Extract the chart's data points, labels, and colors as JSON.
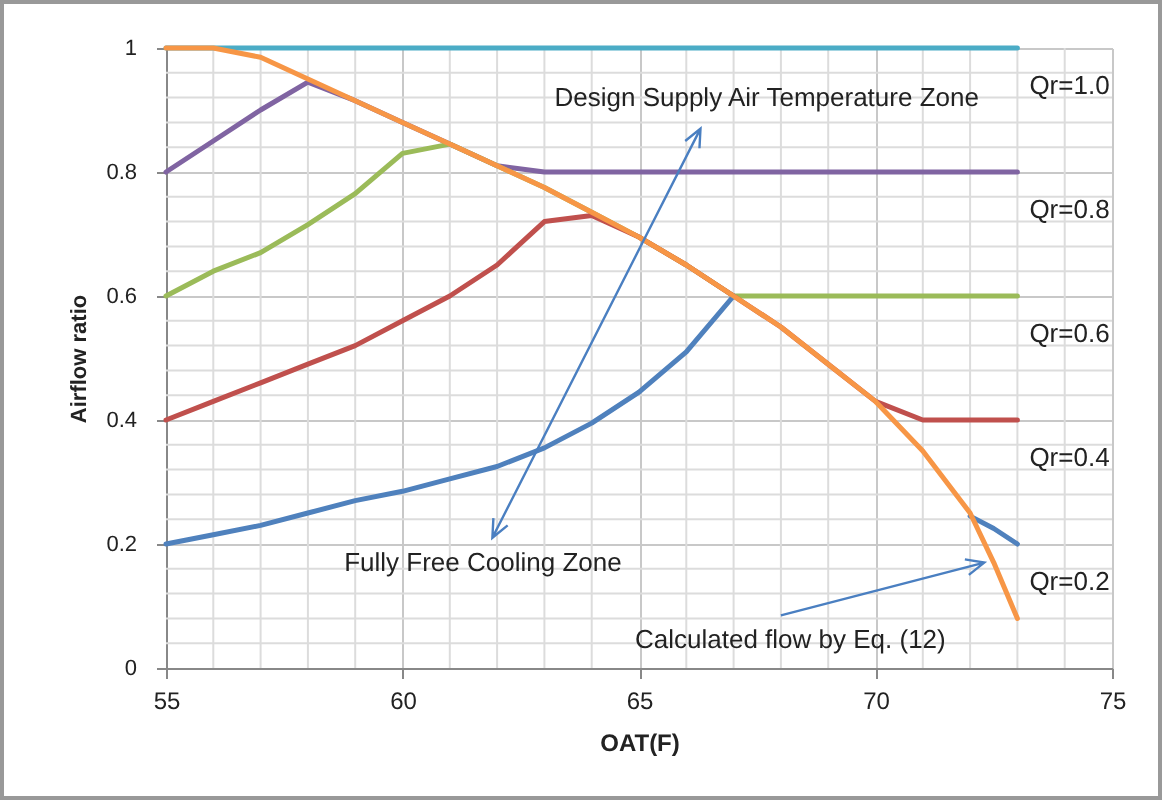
{
  "chart_data": {
    "type": "line",
    "xlabel": "OAT(F)",
    "ylabel": "Airflow ratio",
    "x": [
      55,
      56,
      57,
      58,
      59,
      60,
      61,
      62,
      63,
      64,
      65,
      66,
      67,
      68,
      69,
      70,
      71,
      72,
      72.5,
      73
    ],
    "series": [
      {
        "name": "Qr=1.0",
        "color": "#4bacc6",
        "values": [
          1,
          1,
          1,
          1,
          1,
          1,
          1,
          1,
          1,
          1,
          1,
          1,
          1,
          1,
          1,
          1,
          1,
          1,
          1,
          1
        ]
      },
      {
        "name": "Qr=0.8",
        "color": "#8064a2",
        "values": [
          0.8,
          0.85,
          0.9,
          0.945,
          0.915,
          0.88,
          0.845,
          0.81,
          0.8,
          0.8,
          0.8,
          0.8,
          0.8,
          0.8,
          0.8,
          0.8,
          0.8,
          0.8,
          0.8,
          0.8
        ]
      },
      {
        "name": "Qr=0.6",
        "color": "#9bbb59",
        "values": [
          0.6,
          0.64,
          0.67,
          0.715,
          0.765,
          0.83,
          0.845,
          0.81,
          0.775,
          0.735,
          0.695,
          0.65,
          0.6,
          0.6,
          0.6,
          0.6,
          0.6,
          0.6,
          0.6,
          0.6
        ]
      },
      {
        "name": "Qr=0.4",
        "color": "#c0504d",
        "values": [
          0.4,
          0.43,
          0.46,
          0.49,
          0.52,
          0.56,
          0.6,
          0.65,
          0.72,
          0.73,
          0.695,
          0.65,
          0.6,
          0.55,
          0.49,
          0.43,
          0.4,
          0.4,
          0.4,
          0.4
        ]
      },
      {
        "name": "Qr=0.2",
        "color": "#4f81bd",
        "values": [
          0.2,
          0.215,
          0.23,
          0.25,
          0.27,
          0.285,
          0.305,
          0.325,
          0.355,
          0.395,
          0.445,
          0.51,
          0.6,
          null,
          null,
          null,
          null,
          0.245,
          0.225,
          0.2
        ]
      },
      {
        "color": "#f79646",
        "values": [
          1,
          1,
          0.985,
          0.95,
          0.915,
          0.88,
          0.845,
          0.81,
          0.775,
          0.735,
          0.695,
          0.65,
          0.6,
          0.55,
          0.49,
          0.43,
          0.35,
          0.25,
          0.17,
          0.08
        ]
      }
    ],
    "xlim": [
      55,
      75
    ],
    "xticks": [
      55,
      {
        "value": 56,
        "label": null
      },
      {
        "value": 57,
        "label": null
      },
      {
        "value": 58,
        "label": null
      },
      {
        "value": 59,
        "label": null
      },
      60,
      {
        "value": 61,
        "label": null
      },
      {
        "value": 62,
        "label": null
      },
      {
        "value": 63,
        "label": null
      },
      {
        "value": 64,
        "label": null
      },
      65,
      {
        "value": 66,
        "label": null
      },
      {
        "value": 67,
        "label": null
      },
      {
        "value": 68,
        "label": null
      },
      {
        "value": 69,
        "label": null
      },
      70,
      {
        "value": 71,
        "label": null
      },
      {
        "value": 72,
        "label": null
      },
      {
        "value": 73,
        "label": null
      },
      {
        "value": 74,
        "label": null
      },
      75
    ],
    "ylim": [
      0,
      1
    ],
    "yticks": [
      0,
      {
        "value": 0.04,
        "label": null
      },
      {
        "value": 0.08,
        "label": null
      },
      {
        "value": 0.12,
        "label": null
      },
      {
        "value": 0.16,
        "label": null
      },
      0.2,
      {
        "value": 0.24,
        "label": null
      },
      {
        "value": 0.28,
        "label": null
      },
      {
        "value": 0.32,
        "label": null
      },
      {
        "value": 0.36,
        "label": null
      },
      0.4,
      {
        "value": 0.44,
        "label": null
      },
      {
        "value": 0.48,
        "label": null
      },
      {
        "value": 0.52,
        "label": null
      },
      {
        "value": 0.56,
        "label": null
      },
      0.6,
      {
        "value": 0.64,
        "label": null
      },
      {
        "value": 0.68,
        "label": null
      },
      {
        "value": 0.72,
        "label": null
      },
      {
        "value": 0.76,
        "label": null
      },
      0.8,
      {
        "value": 0.84,
        "label": null
      },
      {
        "value": 0.88,
        "label": null
      },
      {
        "value": 0.92,
        "label": null
      },
      {
        "value": 0.96,
        "label": null
      },
      1
    ],
    "grid": true,
    "legend": "right",
    "marker": "none",
    "line_style": "solid",
    "annotations": [
      "Design Supply Air Temperature Zone",
      "Fully Free Cooling Zone",
      "Calculated flow by Eq. (12)"
    ]
  }
}
